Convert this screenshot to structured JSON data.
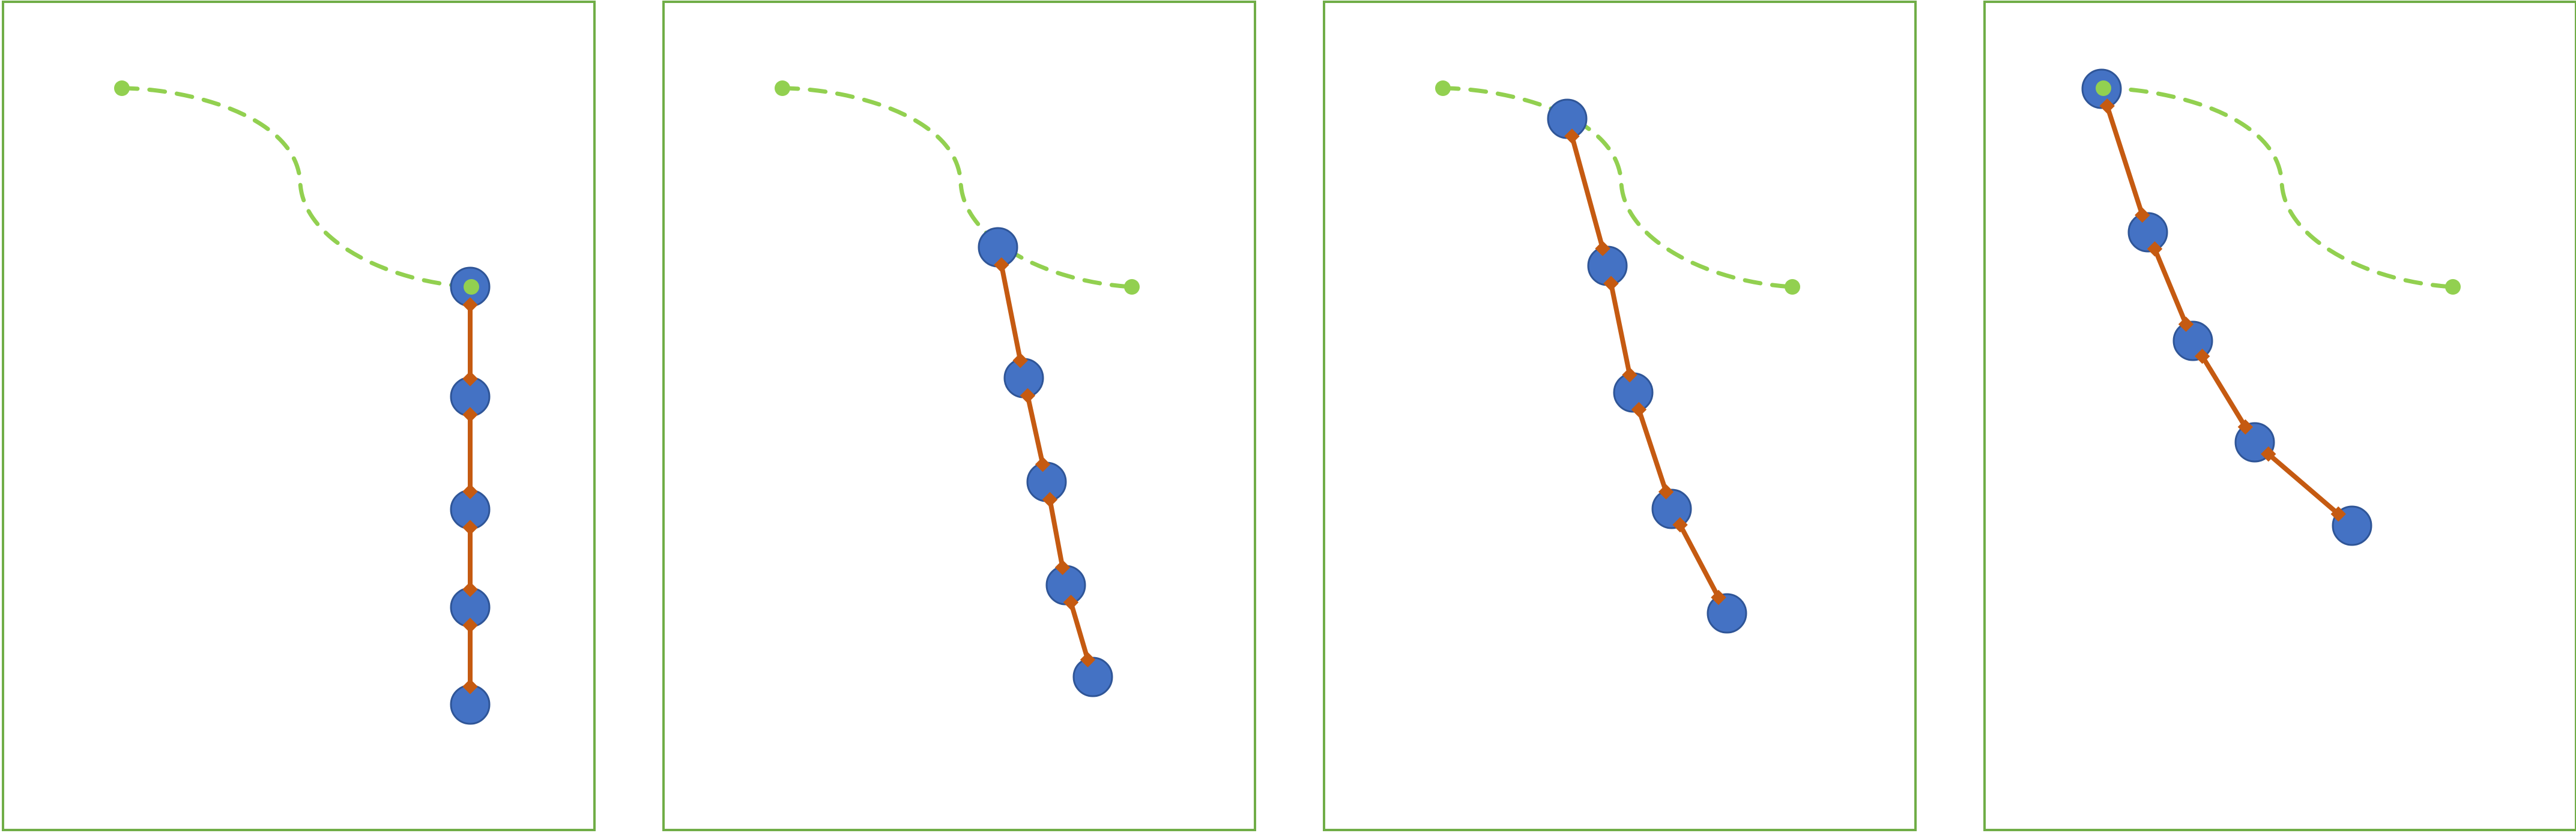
{
  "colors": {
    "background": "#ffffff",
    "frame": "#70ad47",
    "target_path": "#92d050",
    "link": "#c55a11",
    "joint": "#4472c4",
    "joint_outline": "#2f5597"
  },
  "target_path": {
    "style": "dashed",
    "start_marker": "dot",
    "end_marker": "dot"
  },
  "panels": [
    {
      "name": "panel-1",
      "joint_count": 5,
      "effector_on_path": "end"
    },
    {
      "name": "panel-2",
      "joint_count": 5,
      "effector_on_path": "mid"
    },
    {
      "name": "panel-3",
      "joint_count": 5,
      "effector_on_path": "mid"
    },
    {
      "name": "panel-4",
      "joint_count": 5,
      "effector_on_path": "start"
    }
  ]
}
